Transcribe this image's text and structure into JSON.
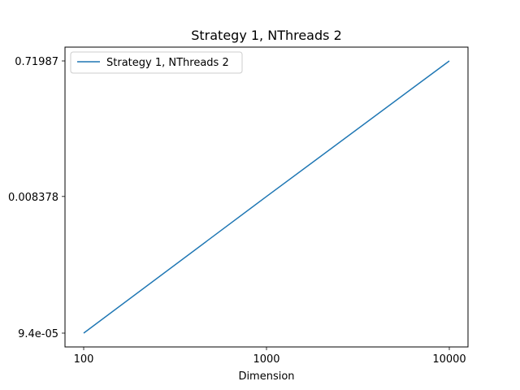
{
  "chart_data": {
    "type": "line",
    "title": "Strategy 1, NThreads 2",
    "xlabel": "Dimension",
    "ylabel": "",
    "x_scale": "log",
    "y_scale": "log",
    "x_ticks": [
      100,
      1000,
      10000
    ],
    "x_tick_labels": [
      "100",
      "1000",
      "10000"
    ],
    "y_ticks": [
      9.4e-05,
      0.008378,
      0.71987
    ],
    "y_tick_labels": [
      "9.4e-05",
      "0.008378",
      "0.71987"
    ],
    "grid": false,
    "legend_position": "top-left",
    "series": [
      {
        "name": "Strategy 1, NThreads 2",
        "color": "#1f77b4",
        "x": [
          100,
          1000,
          10000
        ],
        "y": [
          9.4e-05,
          0.008378,
          0.71987
        ]
      }
    ]
  }
}
